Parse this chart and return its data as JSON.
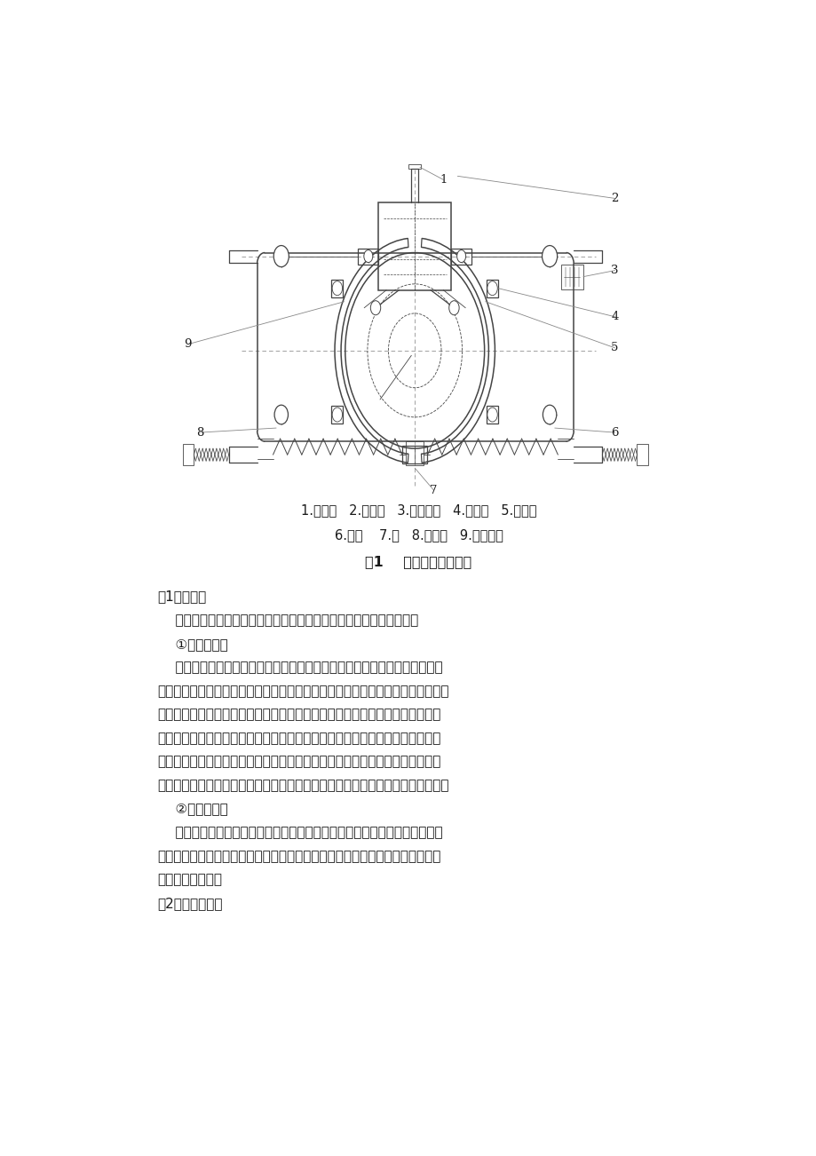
{
  "background_color": "#ffffff",
  "page_width": 9.2,
  "page_height": 13.02,
  "caption_line1": "1.电磁铁   2.制动臂   3.限位螺钉   4.制动带   5.刹车皮",
  "caption_line2": "6.弹簧    7.轴   8.制动轮   9.调整螺杆",
  "figure_title": "图1    电梯制动器结构图",
  "para1": "（1）分类：",
  "para2": "    目前我国电梯里面使用的制动器主要分为抱闸制动器和盘式制动器。",
  "para3": "    ①抱闸制动器",
  "para4_lines": [
    "    当电梯处于停滙状态的时候，电动机和制动器的线圈没有电流通过，制动磁",
    "铁不具有吸引力，但是在制动弹簧的作用下，制动瓦块会紧紧的将制动轮控制住，",
    "从而保持电梯的静止状态。电梯开始运行的时候，电动机处于通电状态，从而产",
    "生的电磁力会把制动瓦块推开，表示电梯运行状况保持良好。当电梯上升或下落",
    "在某个指定的楼层中时，电动机的电流迅速消失，相应的电磁力也会随之消失，",
    "从而通过制动弹簧牵制制动瓦块和制动轮紧紧压在一起，使电梯落在相应的楼层。"
  ],
  "para5": "    ②盘式制动器",
  "para6_lines": [
    "    盘式制动器相较于传统的抱闸式制动器其稳定性更高，结构更加良好，性能",
    "更加完善，是较高端化和专业化的自动设备，现如今广泛应用于高速和吞位较大",
    "的电梯系统之中。"
  ],
  "para7": "（2）基本结构：",
  "body_fontsize": 11,
  "caption_fontsize": 10.5,
  "title_fontsize": 11.5,
  "line_color": "#444444",
  "text_color": "#1a1a1a"
}
